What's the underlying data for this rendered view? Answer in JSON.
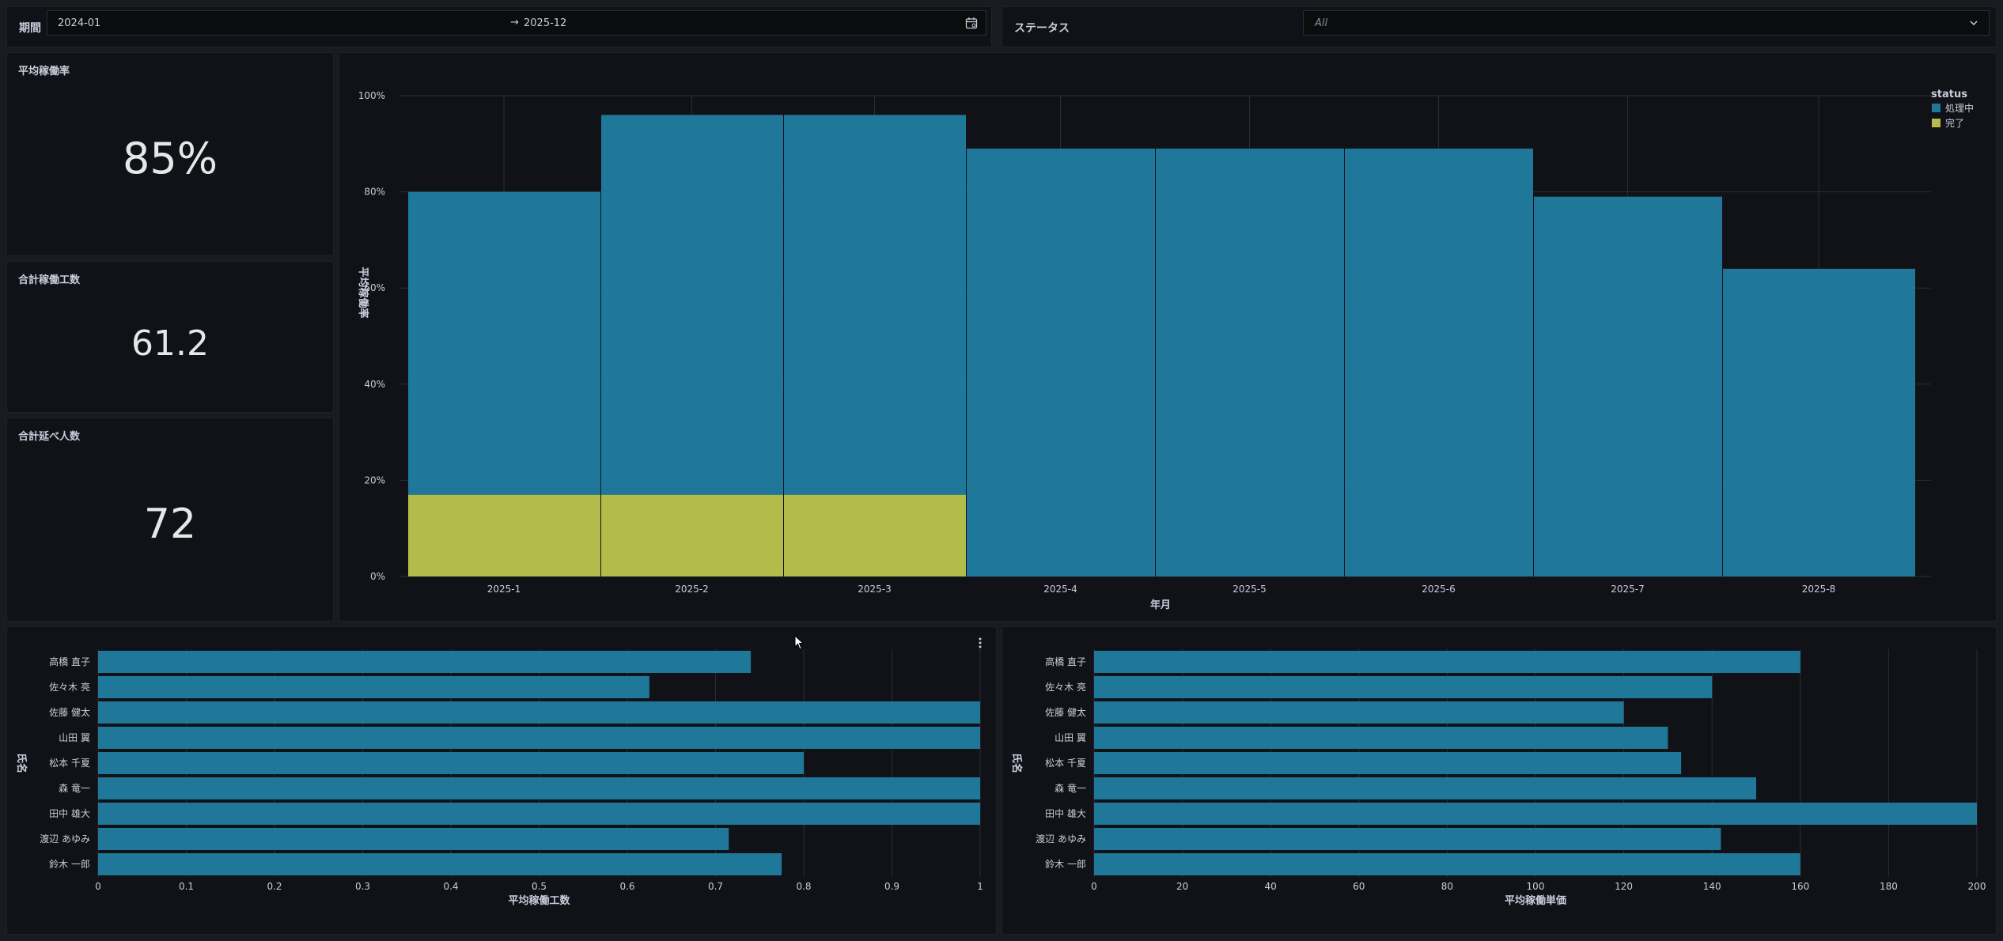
{
  "filters": {
    "period_label": "期間",
    "period_from": "2024-01",
    "period_arrow": "→",
    "period_to": "2025-12",
    "status_label": "ステータス",
    "status_placeholder": "All"
  },
  "stats": [
    {
      "title": "平均稼働率",
      "value": "85%"
    },
    {
      "title": "合計稼働工数",
      "value": "61.2"
    },
    {
      "title": "合計延べ人数",
      "value": "72"
    }
  ],
  "colors": {
    "processing": "#1f7799",
    "done": "#b3bb4a",
    "bar": "#1f7799"
  },
  "icons": {
    "calendar": "calendar-icon",
    "dropdown": "chevron-down-icon",
    "menu": "kebab-menu-icon",
    "cursor": "mouse-pointer-icon"
  },
  "chart_data": [
    {
      "type": "bar",
      "stacked": true,
      "xlabel": "年月",
      "ylabel": "平均稼働率",
      "ylim": [
        0,
        100
      ],
      "yticks": [
        "0%",
        "20%",
        "40%",
        "60%",
        "80%",
        "100%"
      ],
      "categories": [
        "2025-1",
        "2025-2",
        "2025-3",
        "2025-4",
        "2025-5",
        "2025-6",
        "2025-7",
        "2025-8"
      ],
      "legend_title": "status",
      "legend_position": "top-right",
      "series": [
        {
          "name": "完了",
          "color": "#b3bb4a",
          "values": [
            17,
            17,
            17,
            0,
            0,
            0,
            0,
            0
          ]
        },
        {
          "name": "処理中",
          "color": "#1f7799",
          "values": [
            63,
            79,
            79,
            89,
            89,
            89,
            79,
            64
          ]
        }
      ],
      "grid": true
    },
    {
      "type": "bar",
      "orientation": "horizontal",
      "xlabel": "平均稼働工数",
      "ylabel": "氏名",
      "categories": [
        "高橋 直子",
        "佐々木 亮",
        "佐藤 健太",
        "山田 翼",
        "松本 千夏",
        "森 竜一",
        "田中 雄大",
        "渡辺 あゆみ",
        "鈴木 一郎"
      ],
      "values": [
        0.74,
        0.625,
        1.0,
        1.0,
        0.8,
        1.0,
        1.0,
        0.715,
        0.775
      ],
      "xlim": [
        0,
        1
      ],
      "xticks": [
        "0",
        "0.1",
        "0.2",
        "0.3",
        "0.4",
        "0.5",
        "0.6",
        "0.7",
        "0.8",
        "0.9",
        "1"
      ],
      "grid": true
    },
    {
      "type": "bar",
      "orientation": "horizontal",
      "xlabel": "平均稼働単価",
      "ylabel": "氏名",
      "categories": [
        "高橋 直子",
        "佐々木 亮",
        "佐藤 健太",
        "山田 翼",
        "松本 千夏",
        "森 竜一",
        "田中 雄大",
        "渡辺 あゆみ",
        "鈴木 一郎"
      ],
      "values": [
        160,
        140,
        120,
        130,
        133,
        150,
        200,
        142,
        160
      ],
      "xlim": [
        0,
        200
      ],
      "xticks": [
        "0",
        "20",
        "40",
        "60",
        "80",
        "100",
        "120",
        "140",
        "160",
        "180",
        "200"
      ],
      "grid": true
    }
  ]
}
